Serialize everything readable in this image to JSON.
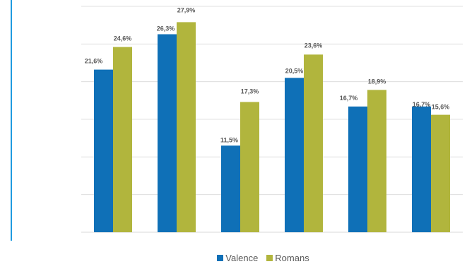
{
  "chart_data": {
    "type": "bar",
    "categories": [
      "",
      "",
      "",
      "",
      "",
      ""
    ],
    "series": [
      {
        "name": "Valence",
        "color": "#0f70b7",
        "values": [
          21.6,
          26.3,
          11.5,
          20.5,
          16.7,
          16.7
        ],
        "labels": [
          "21,6%",
          "26,3%",
          "11,5%",
          "20,5%",
          "16,7%",
          "16,7%"
        ]
      },
      {
        "name": "Romans",
        "color": "#b1b53d",
        "values": [
          24.6,
          27.9,
          17.3,
          23.6,
          18.9,
          15.6
        ],
        "labels": [
          "24,6%",
          "27,9%",
          "17,3%",
          "23,6%",
          "18,9%",
          "15,6%"
        ]
      }
    ],
    "title": "",
    "xlabel": "",
    "ylabel": "",
    "ylim": [
      0,
      30
    ],
    "grid": true,
    "legend": "bottom",
    "gridline_color": "#d9d9d9",
    "label_color": "#595959",
    "accent_rule_color": "#1f9be0"
  },
  "legend": {
    "series_1": "Valence",
    "series_2": "Romans"
  }
}
